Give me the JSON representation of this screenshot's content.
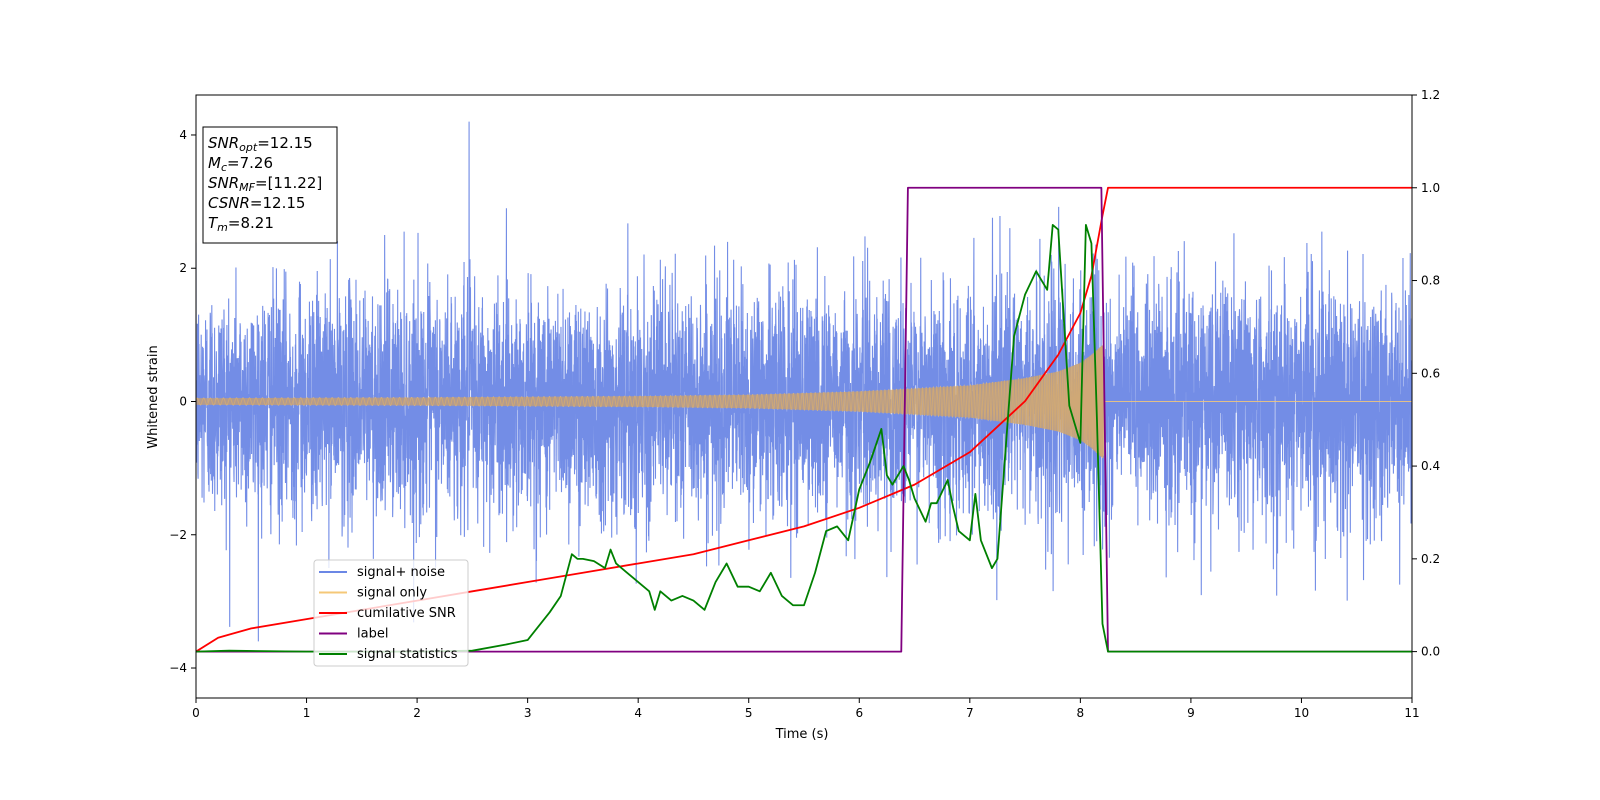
{
  "chart_data": {
    "type": "line",
    "xlabel": "Time (s)",
    "ylabel_left": "Whitened strain",
    "xlim": [
      0,
      11
    ],
    "ylim_left": [
      -4.45,
      4.6
    ],
    "ylim_right": [
      -0.1,
      1.2
    ],
    "x_ticks": [
      0,
      1,
      2,
      3,
      4,
      5,
      6,
      7,
      8,
      9,
      10,
      11
    ],
    "y_left_ticks": [
      -4,
      -2,
      0,
      2,
      4
    ],
    "y_right_ticks": [
      0.0,
      0.2,
      0.4,
      0.6,
      0.8,
      1.0,
      1.2
    ],
    "annotation": {
      "lines": [
        {
          "sym": "SNR",
          "sub": "opt",
          "val": "=12.15"
        },
        {
          "sym": "M",
          "sub": "c",
          "val": "=7.26"
        },
        {
          "sym": "SNR",
          "sub": "MF",
          "val": "=[11.22]"
        },
        {
          "sym": "CSNR",
          "sub": "",
          "val": "=12.15"
        },
        {
          "sym": "T",
          "sub": "m",
          "val": "=8.21"
        }
      ]
    },
    "legend": {
      "placement": "lower-left",
      "entries": [
        {
          "label": "signal+ noise",
          "color": "#6b87e5"
        },
        {
          "label": "signal only",
          "color": "#f5c878"
        },
        {
          "label": "cumilative SNR",
          "color": "#ff0000"
        },
        {
          "label": "label",
          "color": "#800080"
        },
        {
          "label": "signal statistics",
          "color": "#008000"
        }
      ]
    },
    "series": [
      {
        "name": "signal+ noise",
        "axis": "left",
        "color": "#6b87e5",
        "description_values": {
          "noise_std": 0.85,
          "merger_time": 8.21,
          "peak_value": 4.2,
          "peak_time": 2.47
        }
      },
      {
        "name": "signal only",
        "axis": "left",
        "color": "#f5c878",
        "envelope_points": [
          [
            0,
            0.05
          ],
          [
            2,
            0.06
          ],
          [
            4,
            0.08
          ],
          [
            5,
            0.1
          ],
          [
            6,
            0.15
          ],
          [
            7,
            0.24
          ],
          [
            7.5,
            0.35
          ],
          [
            7.8,
            0.45
          ],
          [
            8.0,
            0.58
          ],
          [
            8.1,
            0.7
          ],
          [
            8.2,
            0.85
          ],
          [
            8.21,
            0.0
          ],
          [
            11,
            0.0
          ]
        ]
      },
      {
        "name": "cumilative SNR",
        "axis": "right",
        "color": "#ff0000",
        "x": [
          0,
          0.2,
          0.5,
          1,
          1.5,
          2,
          2.5,
          3,
          3.5,
          4,
          4.5,
          5,
          5.5,
          6,
          6.5,
          7,
          7.5,
          7.8,
          8.0,
          8.1,
          8.2,
          8.25,
          11
        ],
        "y": [
          0.0,
          0.03,
          0.05,
          0.07,
          0.09,
          0.11,
          0.13,
          0.15,
          0.17,
          0.19,
          0.21,
          0.24,
          0.27,
          0.31,
          0.36,
          0.43,
          0.54,
          0.64,
          0.73,
          0.81,
          0.94,
          1.0,
          1.0
        ]
      },
      {
        "name": "label",
        "axis": "right",
        "color": "#800080",
        "x": [
          0,
          6.38,
          6.44,
          8.19,
          8.25,
          11
        ],
        "y": [
          0.0,
          0.0,
          1.0,
          1.0,
          0.0,
          0.0
        ]
      },
      {
        "name": "signal statistics",
        "axis": "right",
        "color": "#008000",
        "x": [
          0,
          0.3,
          1,
          2,
          2.5,
          2.8,
          3.0,
          3.2,
          3.3,
          3.4,
          3.45,
          3.5,
          3.6,
          3.7,
          3.75,
          3.8,
          3.9,
          4.0,
          4.1,
          4.15,
          4.2,
          4.3,
          4.4,
          4.5,
          4.6,
          4.7,
          4.8,
          4.9,
          5.0,
          5.1,
          5.2,
          5.3,
          5.4,
          5.5,
          5.6,
          5.7,
          5.8,
          5.9,
          6.0,
          6.1,
          6.2,
          6.25,
          6.3,
          6.4,
          6.45,
          6.5,
          6.6,
          6.65,
          6.7,
          6.8,
          6.85,
          6.9,
          7.0,
          7.05,
          7.1,
          7.2,
          7.25,
          7.3,
          7.4,
          7.5,
          7.6,
          7.65,
          7.7,
          7.75,
          7.8,
          7.9,
          8.0,
          8.05,
          8.1,
          8.15,
          8.2,
          8.25,
          8.3,
          9,
          10,
          11
        ],
        "y": [
          0.0,
          0.002,
          0.0,
          0.0,
          0.002,
          0.015,
          0.025,
          0.085,
          0.12,
          0.21,
          0.2,
          0.2,
          0.195,
          0.18,
          0.22,
          0.19,
          0.17,
          0.15,
          0.13,
          0.09,
          0.13,
          0.11,
          0.12,
          0.11,
          0.09,
          0.15,
          0.19,
          0.14,
          0.14,
          0.13,
          0.17,
          0.12,
          0.1,
          0.1,
          0.17,
          0.26,
          0.27,
          0.24,
          0.35,
          0.41,
          0.48,
          0.38,
          0.36,
          0.4,
          0.37,
          0.33,
          0.28,
          0.32,
          0.32,
          0.37,
          0.31,
          0.26,
          0.24,
          0.34,
          0.24,
          0.18,
          0.2,
          0.36,
          0.68,
          0.77,
          0.82,
          0.8,
          0.78,
          0.92,
          0.91,
          0.53,
          0.45,
          0.92,
          0.88,
          0.5,
          0.06,
          0.0,
          0.0,
          0.0,
          0.0,
          0.0
        ]
      }
    ]
  }
}
